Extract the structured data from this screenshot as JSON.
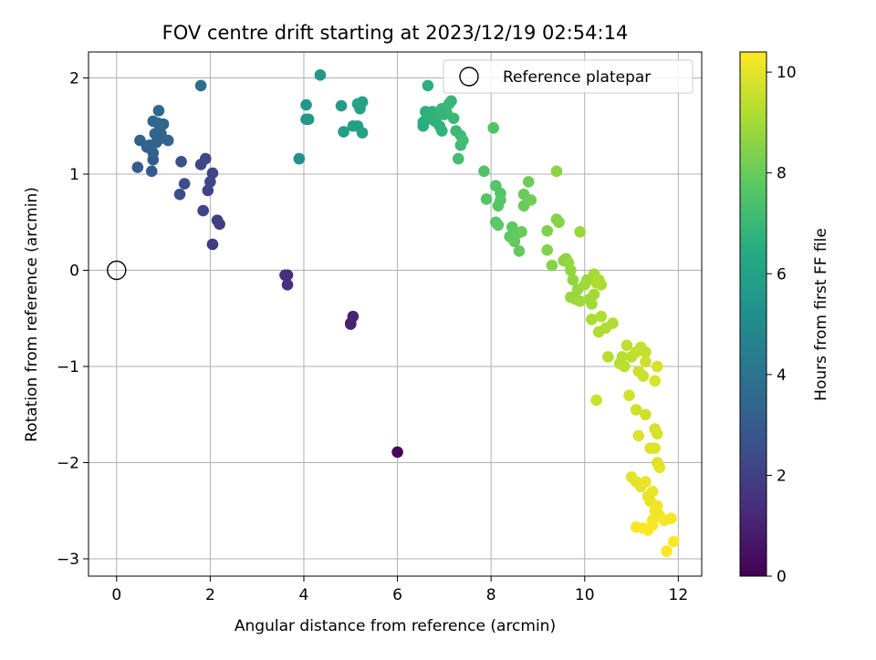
{
  "chart_data": {
    "type": "scatter",
    "title": "FOV centre drift starting at 2023/12/19 02:54:14",
    "xlabel": "Angular distance from reference (arcmin)",
    "ylabel": "Rotation from reference (arcmin)",
    "xlim": [
      -0.6,
      12.5
    ],
    "ylim": [
      -3.18,
      2.27
    ],
    "xticks": [
      0,
      2,
      4,
      6,
      8,
      10,
      12
    ],
    "yticks": [
      -3,
      -2,
      -1,
      0,
      1,
      2
    ],
    "grid": true,
    "legend": {
      "placement": "top-right",
      "entries": [
        "Reference platepar"
      ]
    },
    "reference_point": {
      "x": 0,
      "y": 0
    },
    "colorbar": {
      "label": "Hours from first FF file",
      "range": [
        0,
        10.4
      ],
      "ticks": [
        0,
        2,
        4,
        6,
        8,
        10
      ],
      "colormap": "viridis"
    },
    "points": [
      {
        "x": 6.0,
        "y": -1.89,
        "c": 0.2
      },
      {
        "x": 5.0,
        "y": -0.56,
        "c": 0.9
      },
      {
        "x": 5.05,
        "y": -0.48,
        "c": 1.0
      },
      {
        "x": 5.0,
        "y": -0.55,
        "c": 1.0
      },
      {
        "x": 3.65,
        "y": -0.05,
        "c": 1.4
      },
      {
        "x": 3.6,
        "y": -0.05,
        "c": 1.4
      },
      {
        "x": 3.65,
        "y": -0.15,
        "c": 1.5
      },
      {
        "x": 2.05,
        "y": 0.27,
        "c": 1.9
      },
      {
        "x": 2.15,
        "y": 0.52,
        "c": 2.0
      },
      {
        "x": 2.2,
        "y": 0.48,
        "c": 2.0
      },
      {
        "x": 1.85,
        "y": 0.62,
        "c": 2.1
      },
      {
        "x": 1.95,
        "y": 0.83,
        "c": 2.1
      },
      {
        "x": 2.0,
        "y": 0.92,
        "c": 2.2
      },
      {
        "x": 2.05,
        "y": 1.01,
        "c": 2.2
      },
      {
        "x": 1.9,
        "y": 1.16,
        "c": 2.3
      },
      {
        "x": 1.8,
        "y": 1.1,
        "c": 2.3
      },
      {
        "x": 1.35,
        "y": 0.79,
        "c": 2.5
      },
      {
        "x": 1.45,
        "y": 0.9,
        "c": 2.5
      },
      {
        "x": 1.38,
        "y": 1.13,
        "c": 2.6
      },
      {
        "x": 0.45,
        "y": 1.07,
        "c": 3.0
      },
      {
        "x": 0.75,
        "y": 1.03,
        "c": 3.1
      },
      {
        "x": 0.78,
        "y": 1.15,
        "c": 3.1
      },
      {
        "x": 0.78,
        "y": 1.22,
        "c": 3.2
      },
      {
        "x": 0.65,
        "y": 1.28,
        "c": 3.2
      },
      {
        "x": 0.5,
        "y": 1.35,
        "c": 3.2
      },
      {
        "x": 0.7,
        "y": 1.3,
        "c": 3.3
      },
      {
        "x": 0.85,
        "y": 1.33,
        "c": 3.3
      },
      {
        "x": 0.9,
        "y": 1.36,
        "c": 3.3
      },
      {
        "x": 0.95,
        "y": 1.42,
        "c": 3.4
      },
      {
        "x": 0.82,
        "y": 1.42,
        "c": 3.4
      },
      {
        "x": 1.1,
        "y": 1.35,
        "c": 3.4
      },
      {
        "x": 0.78,
        "y": 1.55,
        "c": 3.5
      },
      {
        "x": 0.88,
        "y": 1.53,
        "c": 3.5
      },
      {
        "x": 1.0,
        "y": 1.52,
        "c": 3.5
      },
      {
        "x": 0.9,
        "y": 1.66,
        "c": 3.6
      },
      {
        "x": 1.8,
        "y": 1.92,
        "c": 3.8
      },
      {
        "x": 3.9,
        "y": 1.16,
        "c": 5.3
      },
      {
        "x": 4.05,
        "y": 1.72,
        "c": 5.5
      },
      {
        "x": 4.05,
        "y": 1.57,
        "c": 5.5
      },
      {
        "x": 4.1,
        "y": 1.57,
        "c": 5.6
      },
      {
        "x": 4.35,
        "y": 2.03,
        "c": 5.6
      },
      {
        "x": 4.8,
        "y": 1.71,
        "c": 5.8
      },
      {
        "x": 4.85,
        "y": 1.44,
        "c": 5.8
      },
      {
        "x": 5.05,
        "y": 1.5,
        "c": 5.9
      },
      {
        "x": 5.15,
        "y": 1.5,
        "c": 5.9
      },
      {
        "x": 5.15,
        "y": 1.73,
        "c": 6.0
      },
      {
        "x": 5.2,
        "y": 1.68,
        "c": 6.0
      },
      {
        "x": 5.25,
        "y": 1.75,
        "c": 6.0
      },
      {
        "x": 5.25,
        "y": 1.43,
        "c": 6.0
      },
      {
        "x": 6.55,
        "y": 1.5,
        "c": 6.5
      },
      {
        "x": 6.55,
        "y": 1.54,
        "c": 6.5
      },
      {
        "x": 6.6,
        "y": 1.56,
        "c": 6.6
      },
      {
        "x": 6.6,
        "y": 1.65,
        "c": 6.6
      },
      {
        "x": 6.65,
        "y": 1.92,
        "c": 6.6
      },
      {
        "x": 6.7,
        "y": 1.6,
        "c": 6.7
      },
      {
        "x": 6.75,
        "y": 1.65,
        "c": 6.7
      },
      {
        "x": 6.8,
        "y": 1.55,
        "c": 6.7
      },
      {
        "x": 6.85,
        "y": 1.6,
        "c": 6.8
      },
      {
        "x": 6.9,
        "y": 1.5,
        "c": 6.8
      },
      {
        "x": 6.95,
        "y": 1.45,
        "c": 6.8
      },
      {
        "x": 7.0,
        "y": 1.62,
        "c": 6.9
      },
      {
        "x": 6.95,
        "y": 1.68,
        "c": 6.9
      },
      {
        "x": 7.05,
        "y": 1.64,
        "c": 6.9
      },
      {
        "x": 7.1,
        "y": 1.73,
        "c": 7.0
      },
      {
        "x": 7.15,
        "y": 1.76,
        "c": 7.0
      },
      {
        "x": 7.2,
        "y": 1.58,
        "c": 7.0
      },
      {
        "x": 7.25,
        "y": 1.45,
        "c": 7.1
      },
      {
        "x": 7.35,
        "y": 1.4,
        "c": 7.1
      },
      {
        "x": 7.35,
        "y": 1.3,
        "c": 7.1
      },
      {
        "x": 7.3,
        "y": 1.16,
        "c": 7.2
      },
      {
        "x": 7.4,
        "y": 1.35,
        "c": 7.2
      },
      {
        "x": 7.85,
        "y": 1.03,
        "c": 7.5
      },
      {
        "x": 8.05,
        "y": 1.48,
        "c": 7.5
      },
      {
        "x": 7.9,
        "y": 0.74,
        "c": 7.6
      },
      {
        "x": 8.1,
        "y": 0.88,
        "c": 7.6
      },
      {
        "x": 8.2,
        "y": 0.8,
        "c": 7.6
      },
      {
        "x": 8.2,
        "y": 0.73,
        "c": 7.7
      },
      {
        "x": 8.15,
        "y": 0.67,
        "c": 7.7
      },
      {
        "x": 8.1,
        "y": 0.5,
        "c": 7.7
      },
      {
        "x": 8.15,
        "y": 0.47,
        "c": 7.8
      },
      {
        "x": 8.4,
        "y": 0.35,
        "c": 7.8
      },
      {
        "x": 8.45,
        "y": 0.45,
        "c": 7.8
      },
      {
        "x": 8.5,
        "y": 0.3,
        "c": 7.9
      },
      {
        "x": 8.55,
        "y": 0.38,
        "c": 7.9
      },
      {
        "x": 8.6,
        "y": 0.2,
        "c": 7.9
      },
      {
        "x": 8.65,
        "y": 0.4,
        "c": 8.0
      },
      {
        "x": 8.7,
        "y": 0.67,
        "c": 8.0
      },
      {
        "x": 8.7,
        "y": 0.79,
        "c": 8.0
      },
      {
        "x": 8.85,
        "y": 0.73,
        "c": 8.1
      },
      {
        "x": 8.8,
        "y": 0.92,
        "c": 8.1
      },
      {
        "x": 9.2,
        "y": 0.41,
        "c": 8.4
      },
      {
        "x": 9.2,
        "y": 0.21,
        "c": 8.4
      },
      {
        "x": 9.3,
        "y": 0.05,
        "c": 8.5
      },
      {
        "x": 9.4,
        "y": 0.53,
        "c": 8.5
      },
      {
        "x": 9.45,
        "y": 0.5,
        "c": 8.5
      },
      {
        "x": 9.4,
        "y": 1.03,
        "c": 8.6
      },
      {
        "x": 9.55,
        "y": 0.1,
        "c": 8.6
      },
      {
        "x": 9.6,
        "y": 0.12,
        "c": 8.6
      },
      {
        "x": 9.65,
        "y": 0.08,
        "c": 8.7
      },
      {
        "x": 9.7,
        "y": 0.0,
        "c": 8.7
      },
      {
        "x": 9.75,
        "y": -0.1,
        "c": 8.7
      },
      {
        "x": 9.9,
        "y": 0.4,
        "c": 8.8
      },
      {
        "x": 9.7,
        "y": -0.28,
        "c": 8.8
      },
      {
        "x": 9.8,
        "y": -0.3,
        "c": 8.8
      },
      {
        "x": 9.85,
        "y": -0.2,
        "c": 8.8
      },
      {
        "x": 9.9,
        "y": -0.32,
        "c": 8.9
      },
      {
        "x": 10.0,
        "y": -0.15,
        "c": 8.9
      },
      {
        "x": 10.05,
        "y": -0.1,
        "c": 8.9
      },
      {
        "x": 10.1,
        "y": -0.3,
        "c": 9.0
      },
      {
        "x": 10.15,
        "y": -0.35,
        "c": 9.0
      },
      {
        "x": 10.2,
        "y": -0.25,
        "c": 9.0
      },
      {
        "x": 10.2,
        "y": -0.04,
        "c": 9.0
      },
      {
        "x": 10.25,
        "y": -0.13,
        "c": 9.1
      },
      {
        "x": 10.35,
        "y": -0.15,
        "c": 9.1
      },
      {
        "x": 10.3,
        "y": -0.1,
        "c": 9.1
      },
      {
        "x": 10.15,
        "y": -0.51,
        "c": 9.1
      },
      {
        "x": 10.35,
        "y": -0.48,
        "c": 9.2
      },
      {
        "x": 10.3,
        "y": -0.64,
        "c": 9.2
      },
      {
        "x": 10.45,
        "y": -0.6,
        "c": 9.2
      },
      {
        "x": 10.6,
        "y": -0.55,
        "c": 9.2
      },
      {
        "x": 10.5,
        "y": -0.9,
        "c": 9.3
      },
      {
        "x": 10.75,
        "y": -0.97,
        "c": 9.3
      },
      {
        "x": 10.8,
        "y": -0.9,
        "c": 9.3
      },
      {
        "x": 10.85,
        "y": -1.0,
        "c": 9.4
      },
      {
        "x": 10.9,
        "y": -0.78,
        "c": 9.4
      },
      {
        "x": 11.0,
        "y": -0.9,
        "c": 9.4
      },
      {
        "x": 11.1,
        "y": -0.85,
        "c": 9.5
      },
      {
        "x": 11.2,
        "y": -0.8,
        "c": 9.5
      },
      {
        "x": 11.3,
        "y": -0.85,
        "c": 9.5
      },
      {
        "x": 11.15,
        "y": -1.05,
        "c": 9.6
      },
      {
        "x": 11.25,
        "y": -1.1,
        "c": 9.6
      },
      {
        "x": 11.3,
        "y": -0.95,
        "c": 9.6
      },
      {
        "x": 10.25,
        "y": -1.35,
        "c": 9.6
      },
      {
        "x": 10.95,
        "y": -1.3,
        "c": 9.7
      },
      {
        "x": 11.1,
        "y": -1.45,
        "c": 9.7
      },
      {
        "x": 11.3,
        "y": -1.5,
        "c": 9.7
      },
      {
        "x": 11.5,
        "y": -1.15,
        "c": 9.8
      },
      {
        "x": 11.55,
        "y": -1.0,
        "c": 9.8
      },
      {
        "x": 11.5,
        "y": -1.65,
        "c": 9.8
      },
      {
        "x": 11.55,
        "y": -1.7,
        "c": 9.8
      },
      {
        "x": 11.4,
        "y": -1.85,
        "c": 9.9
      },
      {
        "x": 11.5,
        "y": -1.85,
        "c": 9.9
      },
      {
        "x": 11.15,
        "y": -1.72,
        "c": 9.9
      },
      {
        "x": 11.55,
        "y": -2.0,
        "c": 9.9
      },
      {
        "x": 11.6,
        "y": -2.05,
        "c": 10.0
      },
      {
        "x": 11.0,
        "y": -2.15,
        "c": 10.0
      },
      {
        "x": 11.1,
        "y": -2.2,
        "c": 10.0
      },
      {
        "x": 11.2,
        "y": -2.25,
        "c": 10.0
      },
      {
        "x": 11.3,
        "y": -2.2,
        "c": 10.1
      },
      {
        "x": 11.35,
        "y": -2.35,
        "c": 10.1
      },
      {
        "x": 11.4,
        "y": -2.4,
        "c": 10.1
      },
      {
        "x": 11.45,
        "y": -2.3,
        "c": 10.1
      },
      {
        "x": 11.5,
        "y": -2.5,
        "c": 10.2
      },
      {
        "x": 11.55,
        "y": -2.45,
        "c": 10.2
      },
      {
        "x": 11.45,
        "y": -2.6,
        "c": 10.2
      },
      {
        "x": 11.6,
        "y": -2.55,
        "c": 10.2
      },
      {
        "x": 11.7,
        "y": -2.6,
        "c": 10.3
      },
      {
        "x": 11.85,
        "y": -2.58,
        "c": 10.3
      },
      {
        "x": 11.1,
        "y": -2.67,
        "c": 10.3
      },
      {
        "x": 11.25,
        "y": -2.68,
        "c": 10.3
      },
      {
        "x": 11.35,
        "y": -2.7,
        "c": 10.4
      },
      {
        "x": 11.45,
        "y": -2.65,
        "c": 10.4
      },
      {
        "x": 11.75,
        "y": -2.92,
        "c": 10.4
      },
      {
        "x": 11.9,
        "y": -2.82,
        "c": 10.4
      }
    ]
  }
}
